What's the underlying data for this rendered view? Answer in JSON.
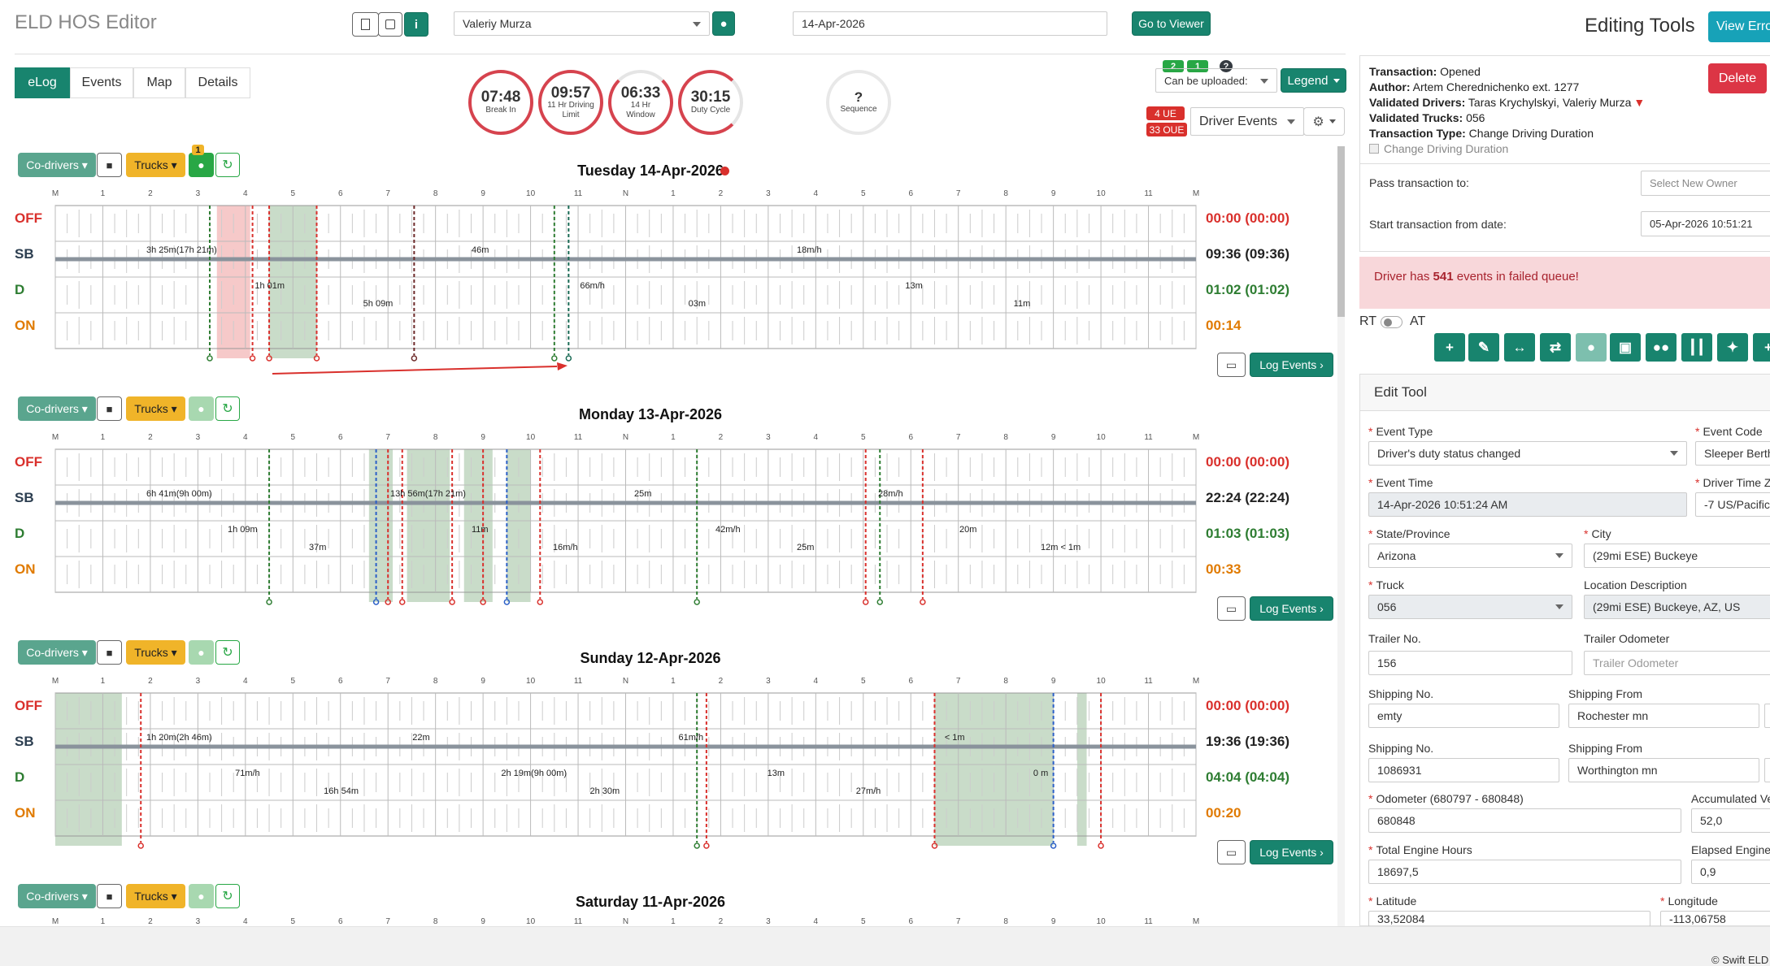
{
  "app": {
    "title": "ELD HOS Editor",
    "footer": "© Swift ELD"
  },
  "toolbar": {
    "driver": "Valeriy Murza",
    "date": "14-Apr-2026",
    "go_viewer": "Go to Viewer"
  },
  "right_header": {
    "title": "Editing Tools",
    "view_errors": "View Erro"
  },
  "tabs": [
    "eLog",
    "Events",
    "Map",
    "Details"
  ],
  "timers": [
    {
      "value": "07:48",
      "label": "Break In"
    },
    {
      "value": "09:57",
      "label": "11 Hr Driving Limit"
    },
    {
      "value": "06:33",
      "label": "14 Hr Window"
    },
    {
      "value": "30:15",
      "label": "Duty Cycle"
    }
  ],
  "sequence": {
    "value": "?",
    "label": "Sequence"
  },
  "upload": {
    "label": "Can be uploaded:",
    "badge1": "2",
    "badge2": "1",
    "badge3": "?",
    "legend": "Legend",
    "ue": "4 UE",
    "oue": "33 OUE",
    "driver_events": "Driver Events"
  },
  "log_buttons": {
    "co_drivers": "Co-drivers",
    "trucks": "Trucks",
    "log_events": "Log Events",
    "truck_badge": "1"
  },
  "hours_top": [
    "M",
    "1",
    "2",
    "3",
    "4",
    "5",
    "6",
    "7",
    "8",
    "9",
    "10",
    "11",
    "N",
    "1",
    "2",
    "3",
    "4",
    "5",
    "6",
    "7",
    "8",
    "9",
    "10",
    "11",
    "M"
  ],
  "statuses": [
    "OFF",
    "SB",
    "D",
    "ON"
  ],
  "days": [
    {
      "title": "Tuesday 14-Apr-2026",
      "totals": [
        "00:00 (00:00)",
        "09:36 (09:36)",
        "01:02 (01:02)",
        "00:14"
      ],
      "labels": [
        "3h 25m(17h 21m)",
        "1h 01m",
        "5h 09m",
        "46m",
        "66m/h",
        "03m",
        "18m/h",
        "13m",
        "11m"
      ]
    },
    {
      "title": "Monday 13-Apr-2026",
      "totals": [
        "00:00 (00:00)",
        "22:24 (22:24)",
        "01:03 (01:03)",
        "00:33"
      ],
      "labels": [
        "6h 41m(9h 00m)",
        "1h 09m",
        "37m",
        "13h 56m(17h 21m)",
        "11m",
        "16m/h",
        "25m",
        "42m/h",
        "25m",
        "28m/h",
        "20m",
        "12m < 1m"
      ]
    },
    {
      "title": "Sunday 12-Apr-2026",
      "totals": [
        "00:00 (00:00)",
        "19:36 (19:36)",
        "04:04 (04:04)",
        "00:20"
      ],
      "labels": [
        "1h 20m(2h 46m)",
        "71m/h",
        "16h 54m",
        "22m",
        "2h 19m(9h 00m)",
        "2h 30m",
        "61m/h",
        "13m",
        "27m/h",
        "< 1m",
        "0 m"
      ]
    },
    {
      "title": "Saturday 11-Apr-2026"
    }
  ],
  "transaction": {
    "status_label": "Transaction:",
    "status": "Opened",
    "author_label": "Author:",
    "author": "Artem Cherednichenko ext. 1277",
    "vd_label": "Validated Drivers:",
    "vd": "Taras Krychylskyi, Valeriy Murza",
    "vt_label": "Validated Trucks:",
    "vt": "056",
    "type_label": "Transaction Type:",
    "type": "Change Driving Duration",
    "checkbox": "Change Driving Duration",
    "delete": "Delete",
    "pass_label": "Pass transaction to:",
    "pass_placeholder": "Select New Owner",
    "start_label": "Start transaction from date:",
    "start_value": "05-Apr-2026 10:51:21"
  },
  "alert": {
    "prefix": "Driver has ",
    "count": "541",
    "suffix": " events in failed queue!"
  },
  "rt_at": {
    "rt": "RT",
    "at": "AT"
  },
  "edit": {
    "title": "Edit Tool",
    "event_type_l": "Event Type",
    "event_type": "Driver's duty status changed",
    "event_code_l": "Event Code",
    "event_code": "Sleeper Berth",
    "event_time_l": "Event Time",
    "event_time": "14-Apr-2026 10:51:24 AM",
    "tz_l": "Driver Time Z",
    "tz": "-7 US/Pacific",
    "state_l": "State/Province",
    "state": "Arizona",
    "city_l": "City",
    "city": "(29mi ESE) Buckeye",
    "truck_l": "Truck",
    "truck": "056",
    "locdesc_l": "Location Description",
    "locdesc": "(29mi ESE) Buckeye, AZ, US",
    "trailer_l": "Trailer No.",
    "trailer": "156",
    "trailer_odo_l": "Trailer Odometer",
    "trailer_odo_ph": "Trailer Odometer",
    "ship1_l": "Shipping No.",
    "ship1": "emty",
    "from1_l": "Shipping From",
    "from1": "Rochester mn",
    "ship2_l": "Shipping No.",
    "ship2": "1086931",
    "from2_l": "Shipping From",
    "from2": "Worthington mn",
    "odo_l": "Odometer (680797 - 680848)",
    "odo": "680848",
    "accum_l": "Accumulated Ve",
    "accum": "52,0",
    "engine_l": "Total Engine Hours",
    "engine": "18697,5",
    "elapsed_l": "Elapsed Engine",
    "elapsed": "0,9",
    "lat_l": "Latitude",
    "lat": "33,52084",
    "lon_l": "Longitude",
    "lon": "-113,06758"
  }
}
